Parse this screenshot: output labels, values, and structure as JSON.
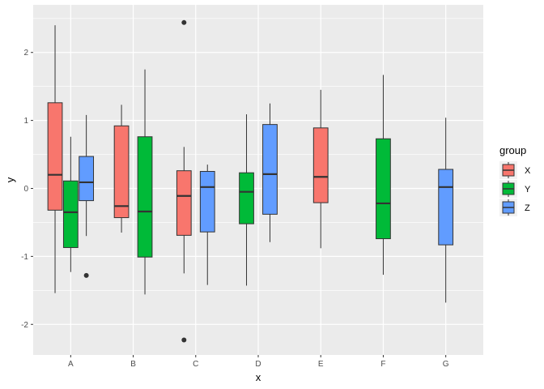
{
  "chart_data": {
    "type": "boxplot",
    "xlabel": "x",
    "ylabel": "y",
    "ylim": [
      -2.45,
      2.7
    ],
    "yticks": [
      -2,
      -1,
      0,
      1,
      2
    ],
    "categories": [
      "A",
      "B",
      "C",
      "D",
      "E",
      "F",
      "G"
    ],
    "grid": true,
    "legend": {
      "title": "group",
      "position": "right",
      "entries": [
        {
          "name": "X",
          "color": "#F8766D"
        },
        {
          "name": "Y",
          "color": "#00BA38"
        },
        {
          "name": "Z",
          "color": "#619CFF"
        }
      ]
    },
    "boxes": [
      {
        "category": "A",
        "group": "X",
        "lower_whisker": -1.54,
        "q1": -0.32,
        "median": 0.2,
        "q3": 1.26,
        "upper_whisker": 2.4,
        "outliers": []
      },
      {
        "category": "A",
        "group": "Y",
        "lower_whisker": -1.23,
        "q1": -0.87,
        "median": -0.35,
        "q3": 0.11,
        "upper_whisker": 0.76,
        "outliers": []
      },
      {
        "category": "A",
        "group": "Z",
        "lower_whisker": -0.7,
        "q1": -0.18,
        "median": 0.09,
        "q3": 0.47,
        "upper_whisker": 1.08,
        "outliers": [
          -1.28
        ]
      },
      {
        "category": "B",
        "group": "X",
        "lower_whisker": -0.65,
        "q1": -0.43,
        "median": -0.26,
        "q3": 0.92,
        "upper_whisker": 1.23,
        "outliers": []
      },
      {
        "category": "B",
        "group": "Y",
        "lower_whisker": -1.56,
        "q1": -1.01,
        "median": -0.34,
        "q3": 0.76,
        "upper_whisker": 1.75,
        "outliers": []
      },
      {
        "category": "C",
        "group": "X",
        "lower_whisker": -1.25,
        "q1": -0.69,
        "median": -0.11,
        "q3": 0.26,
        "upper_whisker": 0.61,
        "outliers": [
          2.44,
          -2.23
        ]
      },
      {
        "category": "C",
        "group": "Z",
        "lower_whisker": -1.42,
        "q1": -0.64,
        "median": 0.02,
        "q3": 0.25,
        "upper_whisker": 0.35,
        "outliers": []
      },
      {
        "category": "D",
        "group": "Y",
        "lower_whisker": -1.43,
        "q1": -0.52,
        "median": -0.05,
        "q3": 0.23,
        "upper_whisker": 1.09,
        "outliers": []
      },
      {
        "category": "D",
        "group": "Z",
        "lower_whisker": -0.79,
        "q1": -0.38,
        "median": 0.21,
        "q3": 0.94,
        "upper_whisker": 1.25,
        "outliers": []
      },
      {
        "category": "E",
        "group": "X",
        "lower_whisker": -0.88,
        "q1": -0.21,
        "median": 0.17,
        "q3": 0.89,
        "upper_whisker": 1.45,
        "outliers": []
      },
      {
        "category": "F",
        "group": "Y",
        "lower_whisker": -1.27,
        "q1": -0.74,
        "median": -0.22,
        "q3": 0.73,
        "upper_whisker": 1.67,
        "outliers": []
      },
      {
        "category": "G",
        "group": "Z",
        "lower_whisker": -1.68,
        "q1": -0.83,
        "median": 0.02,
        "q3": 0.28,
        "upper_whisker": 1.04,
        "outliers": []
      }
    ]
  }
}
